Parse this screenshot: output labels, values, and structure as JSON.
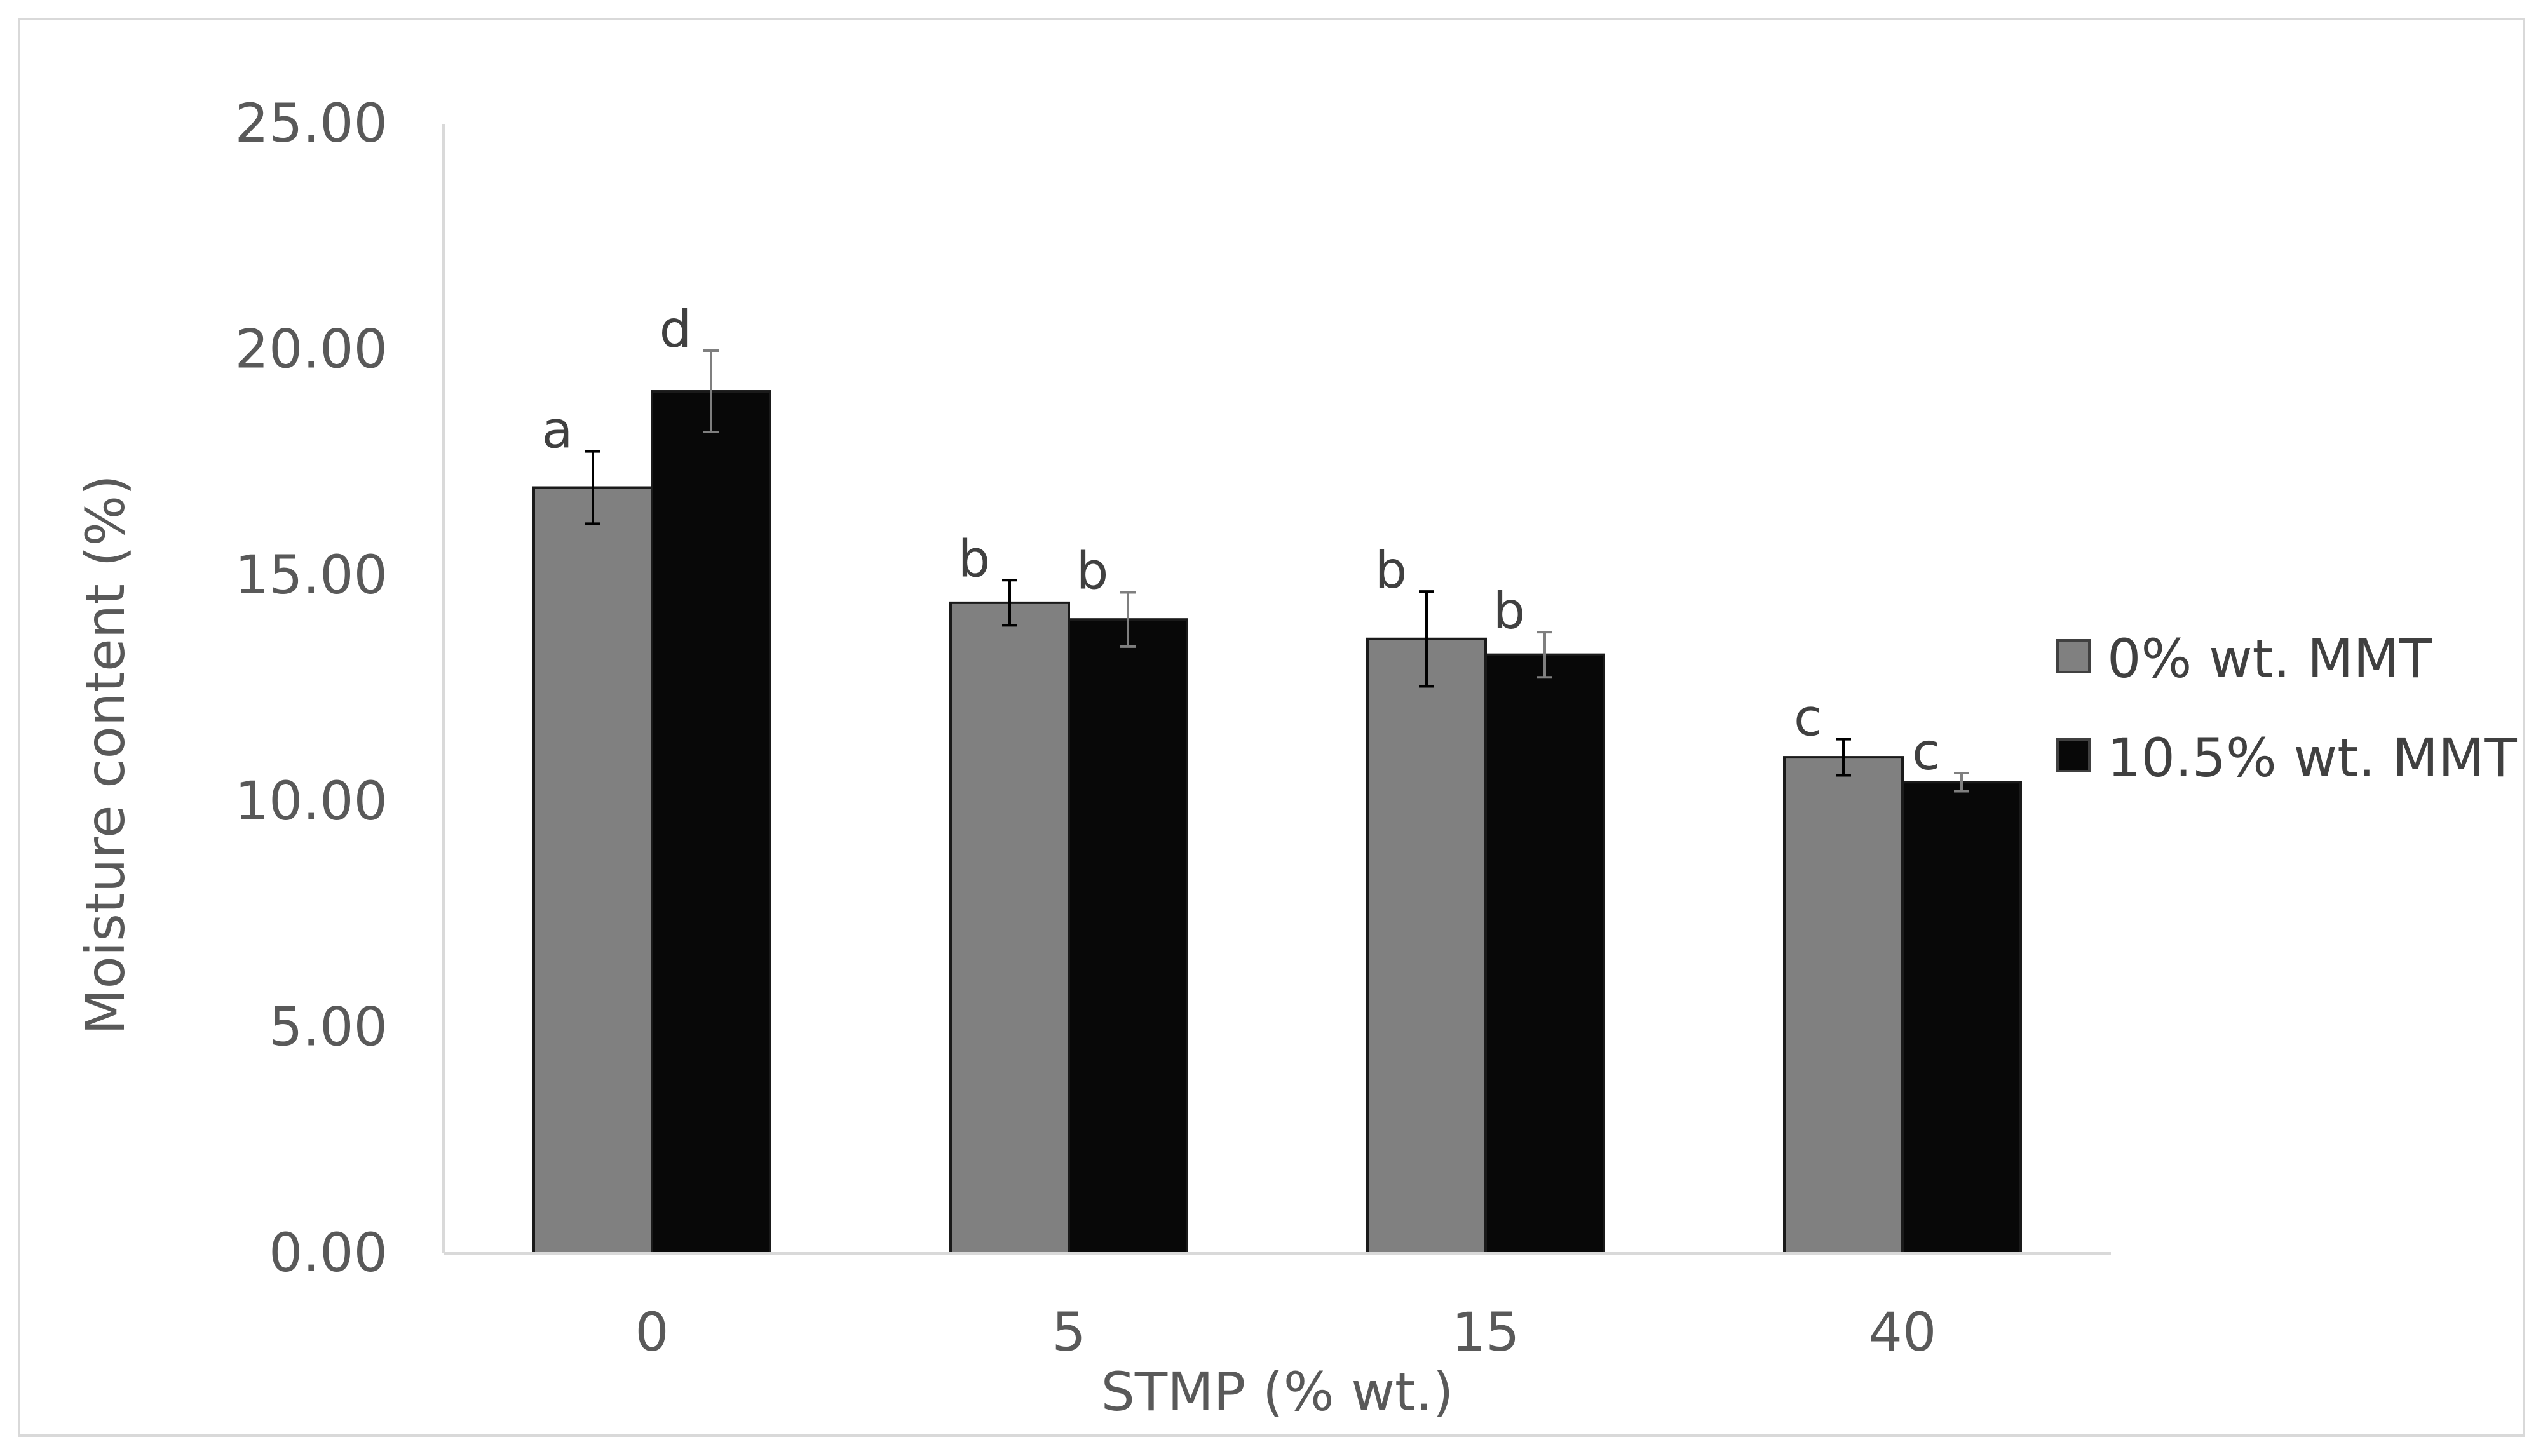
{
  "chart_data": {
    "type": "bar",
    "title": "",
    "xlabel": "STMP (% wt.)",
    "ylabel": "Moisture content (%)",
    "categories": [
      "0",
      "5",
      "15",
      "40"
    ],
    "ylim": [
      0,
      25
    ],
    "yticks": [
      "0.00",
      "5.00",
      "10.00",
      "15.00",
      "20.00",
      "25.00"
    ],
    "grid": false,
    "legend_position": "right",
    "series": [
      {
        "name": "0% wt. MMT",
        "color": "#808080",
        "values": [
          16.95,
          14.4,
          13.6,
          10.98
        ],
        "errors": [
          0.8,
          0.5,
          1.05,
          0.4
        ],
        "labels": [
          "a",
          "b",
          "b",
          "c"
        ]
      },
      {
        "name": "10.5% wt. MMT",
        "color": "#080808",
        "values": [
          19.08,
          14.03,
          13.25,
          10.43
        ],
        "errors": [
          0.9,
          0.6,
          0.5,
          0.2
        ],
        "labels": [
          "d",
          "b",
          "b",
          "c"
        ]
      }
    ]
  }
}
